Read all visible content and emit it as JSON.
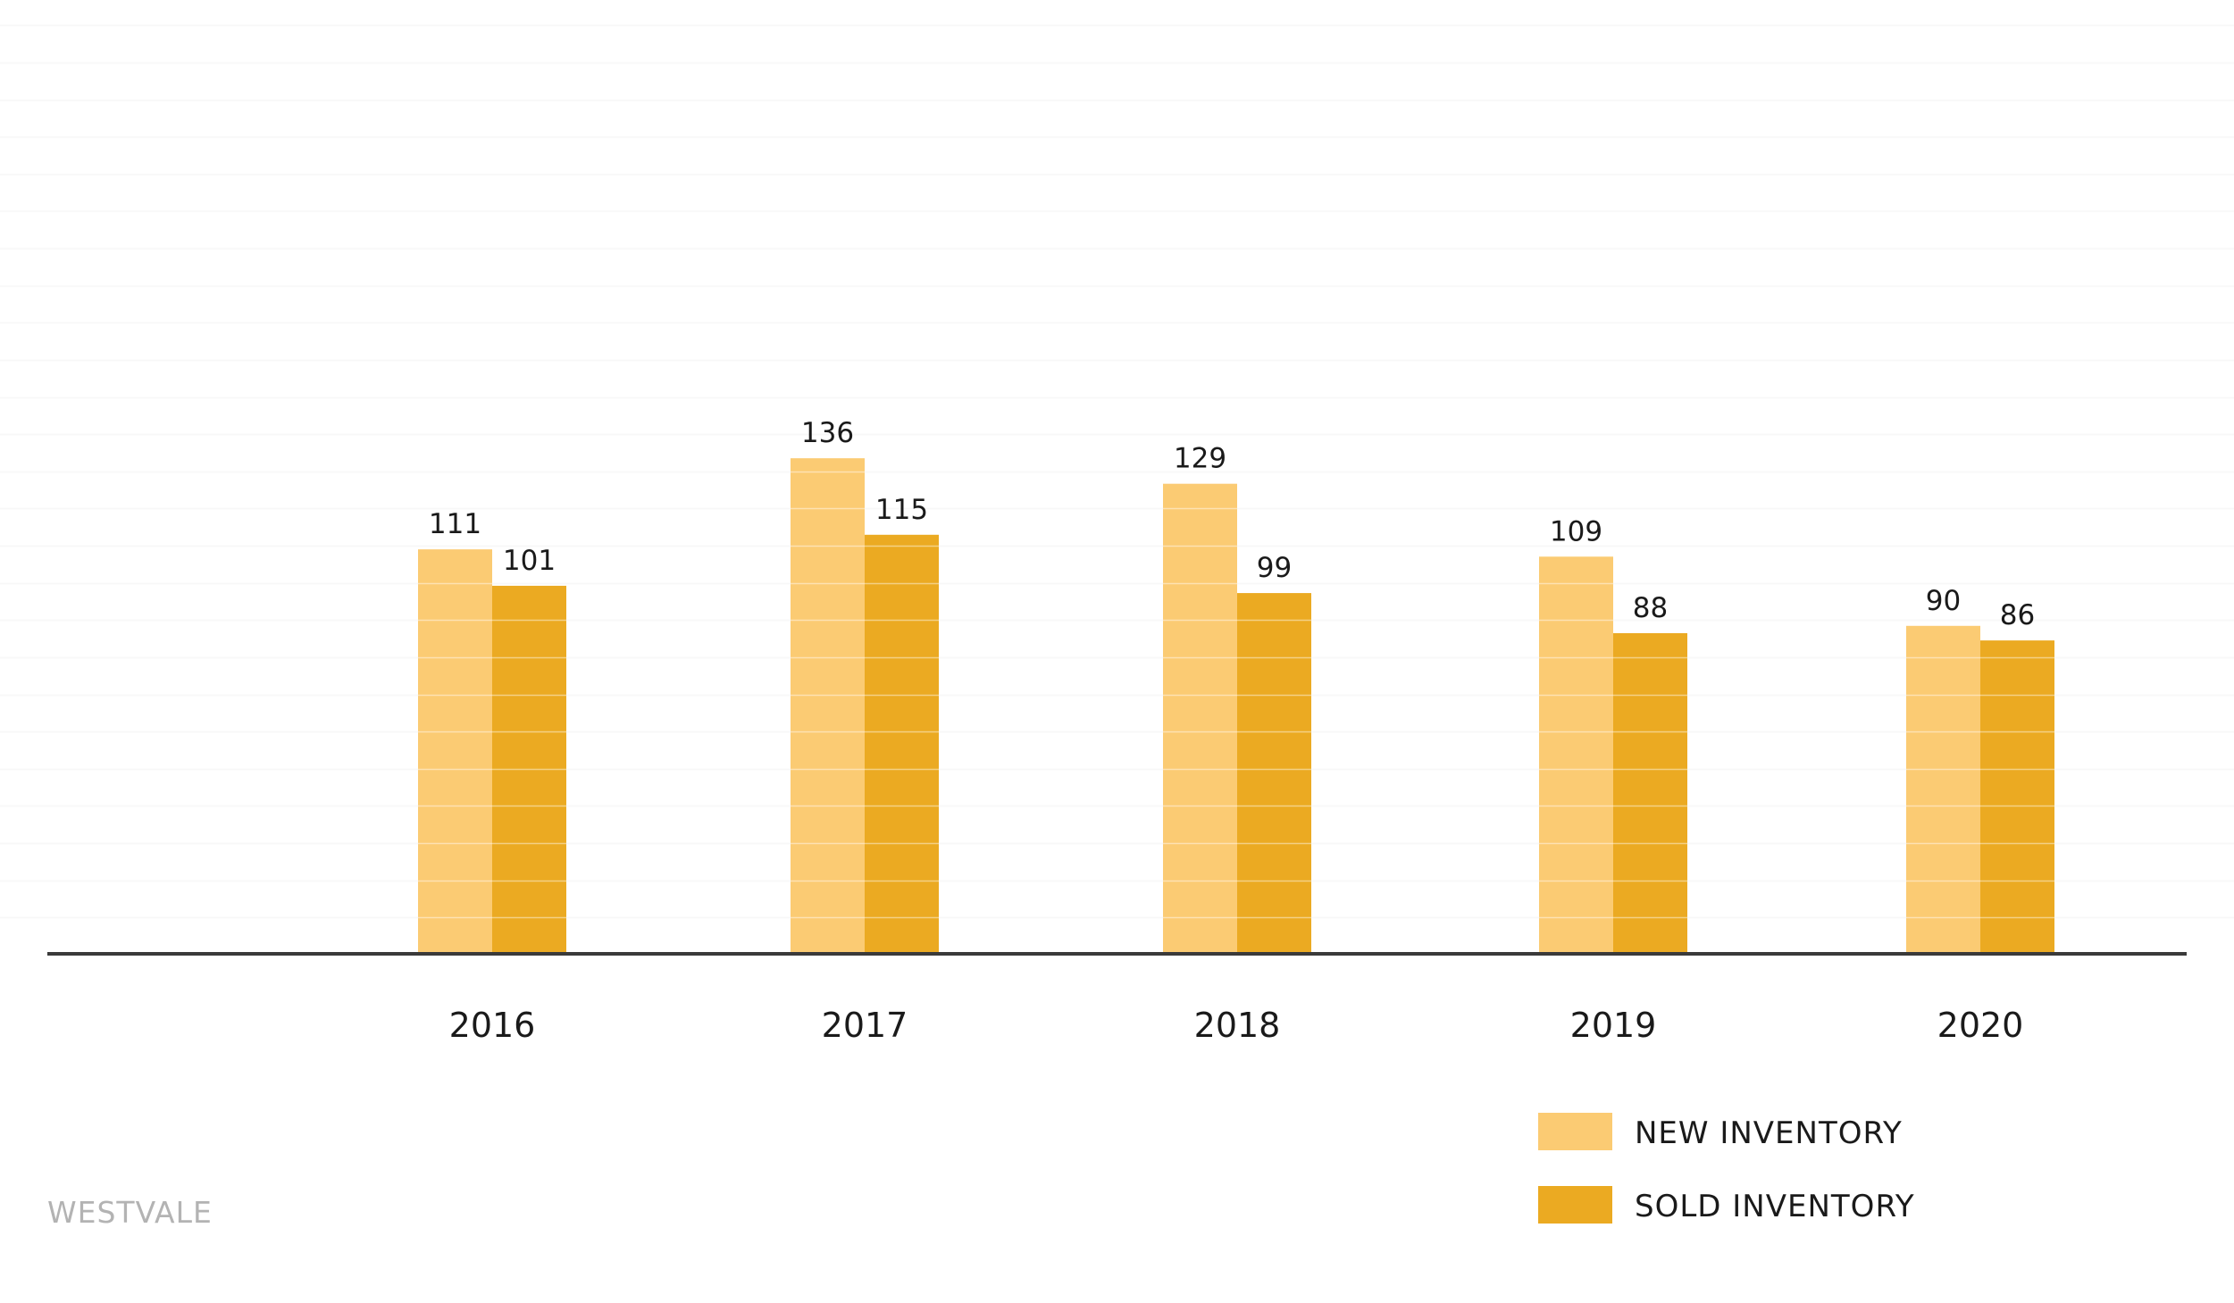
{
  "brand": "WESTVALE",
  "chart_data": {
    "type": "bar",
    "title": "",
    "xlabel": "",
    "ylabel": "",
    "categories": [
      "2016",
      "2017",
      "2018",
      "2019",
      "2020"
    ],
    "series": [
      {
        "name": "NEW INVENTORY",
        "color": "#FBCB73",
        "values": [
          111,
          136,
          129,
          109,
          90
        ]
      },
      {
        "name": "SOLD INVENTORY",
        "color": "#EBAA22",
        "values": [
          101,
          115,
          99,
          88,
          86
        ]
      }
    ],
    "ylim": [
      0,
      256
    ],
    "grid": true,
    "legend_position": "bottom-right",
    "axis_color": "#3a3a3a",
    "grid_color": "#f3f3f3"
  }
}
